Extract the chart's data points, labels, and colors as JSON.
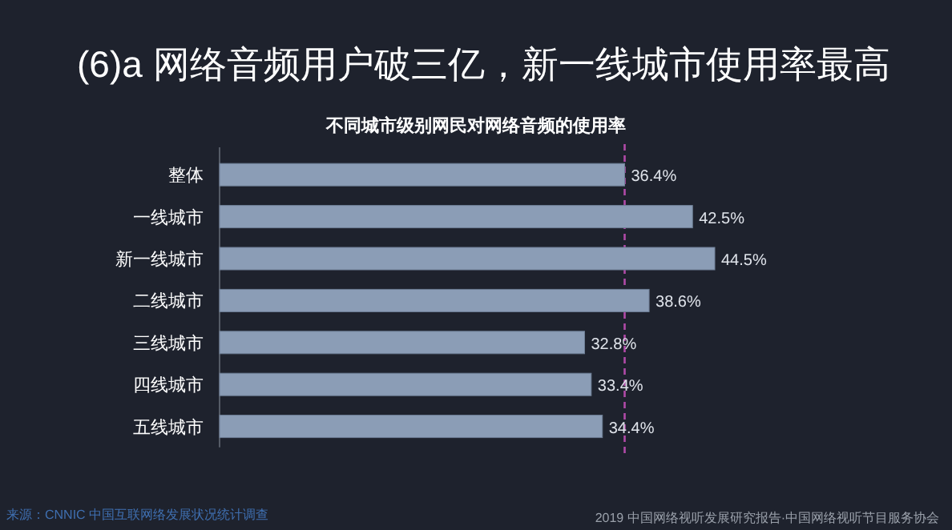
{
  "chart_data": {
    "type": "bar",
    "orientation": "horizontal",
    "title": "(6)a 网络音频用户破三亿，新一线城市使用率最高",
    "subtitle": "不同城市级别网民对网络音频的使用率",
    "categories": [
      "整体",
      "一线城市",
      "新一线城市",
      "二线城市",
      "三线城市",
      "四线城市",
      "五线城市"
    ],
    "values": [
      36.4,
      42.5,
      44.5,
      38.6,
      32.8,
      33.4,
      34.4
    ],
    "value_labels": [
      "36.4%",
      "42.5%",
      "44.5%",
      "38.6%",
      "32.8%",
      "33.4%",
      "34.4%"
    ],
    "color": "#8b9db6",
    "ref_lines": [
      {
        "axis": "x",
        "value": 36.4,
        "color": "#b04aa8",
        "line_style": "dashed"
      }
    ],
    "annotations": [
      "来源：CNNIC 中国互联网络发展状况统计调查",
      "2019 中国网络视听发展研究报告·中国网络视听节目服务协会"
    ]
  }
}
